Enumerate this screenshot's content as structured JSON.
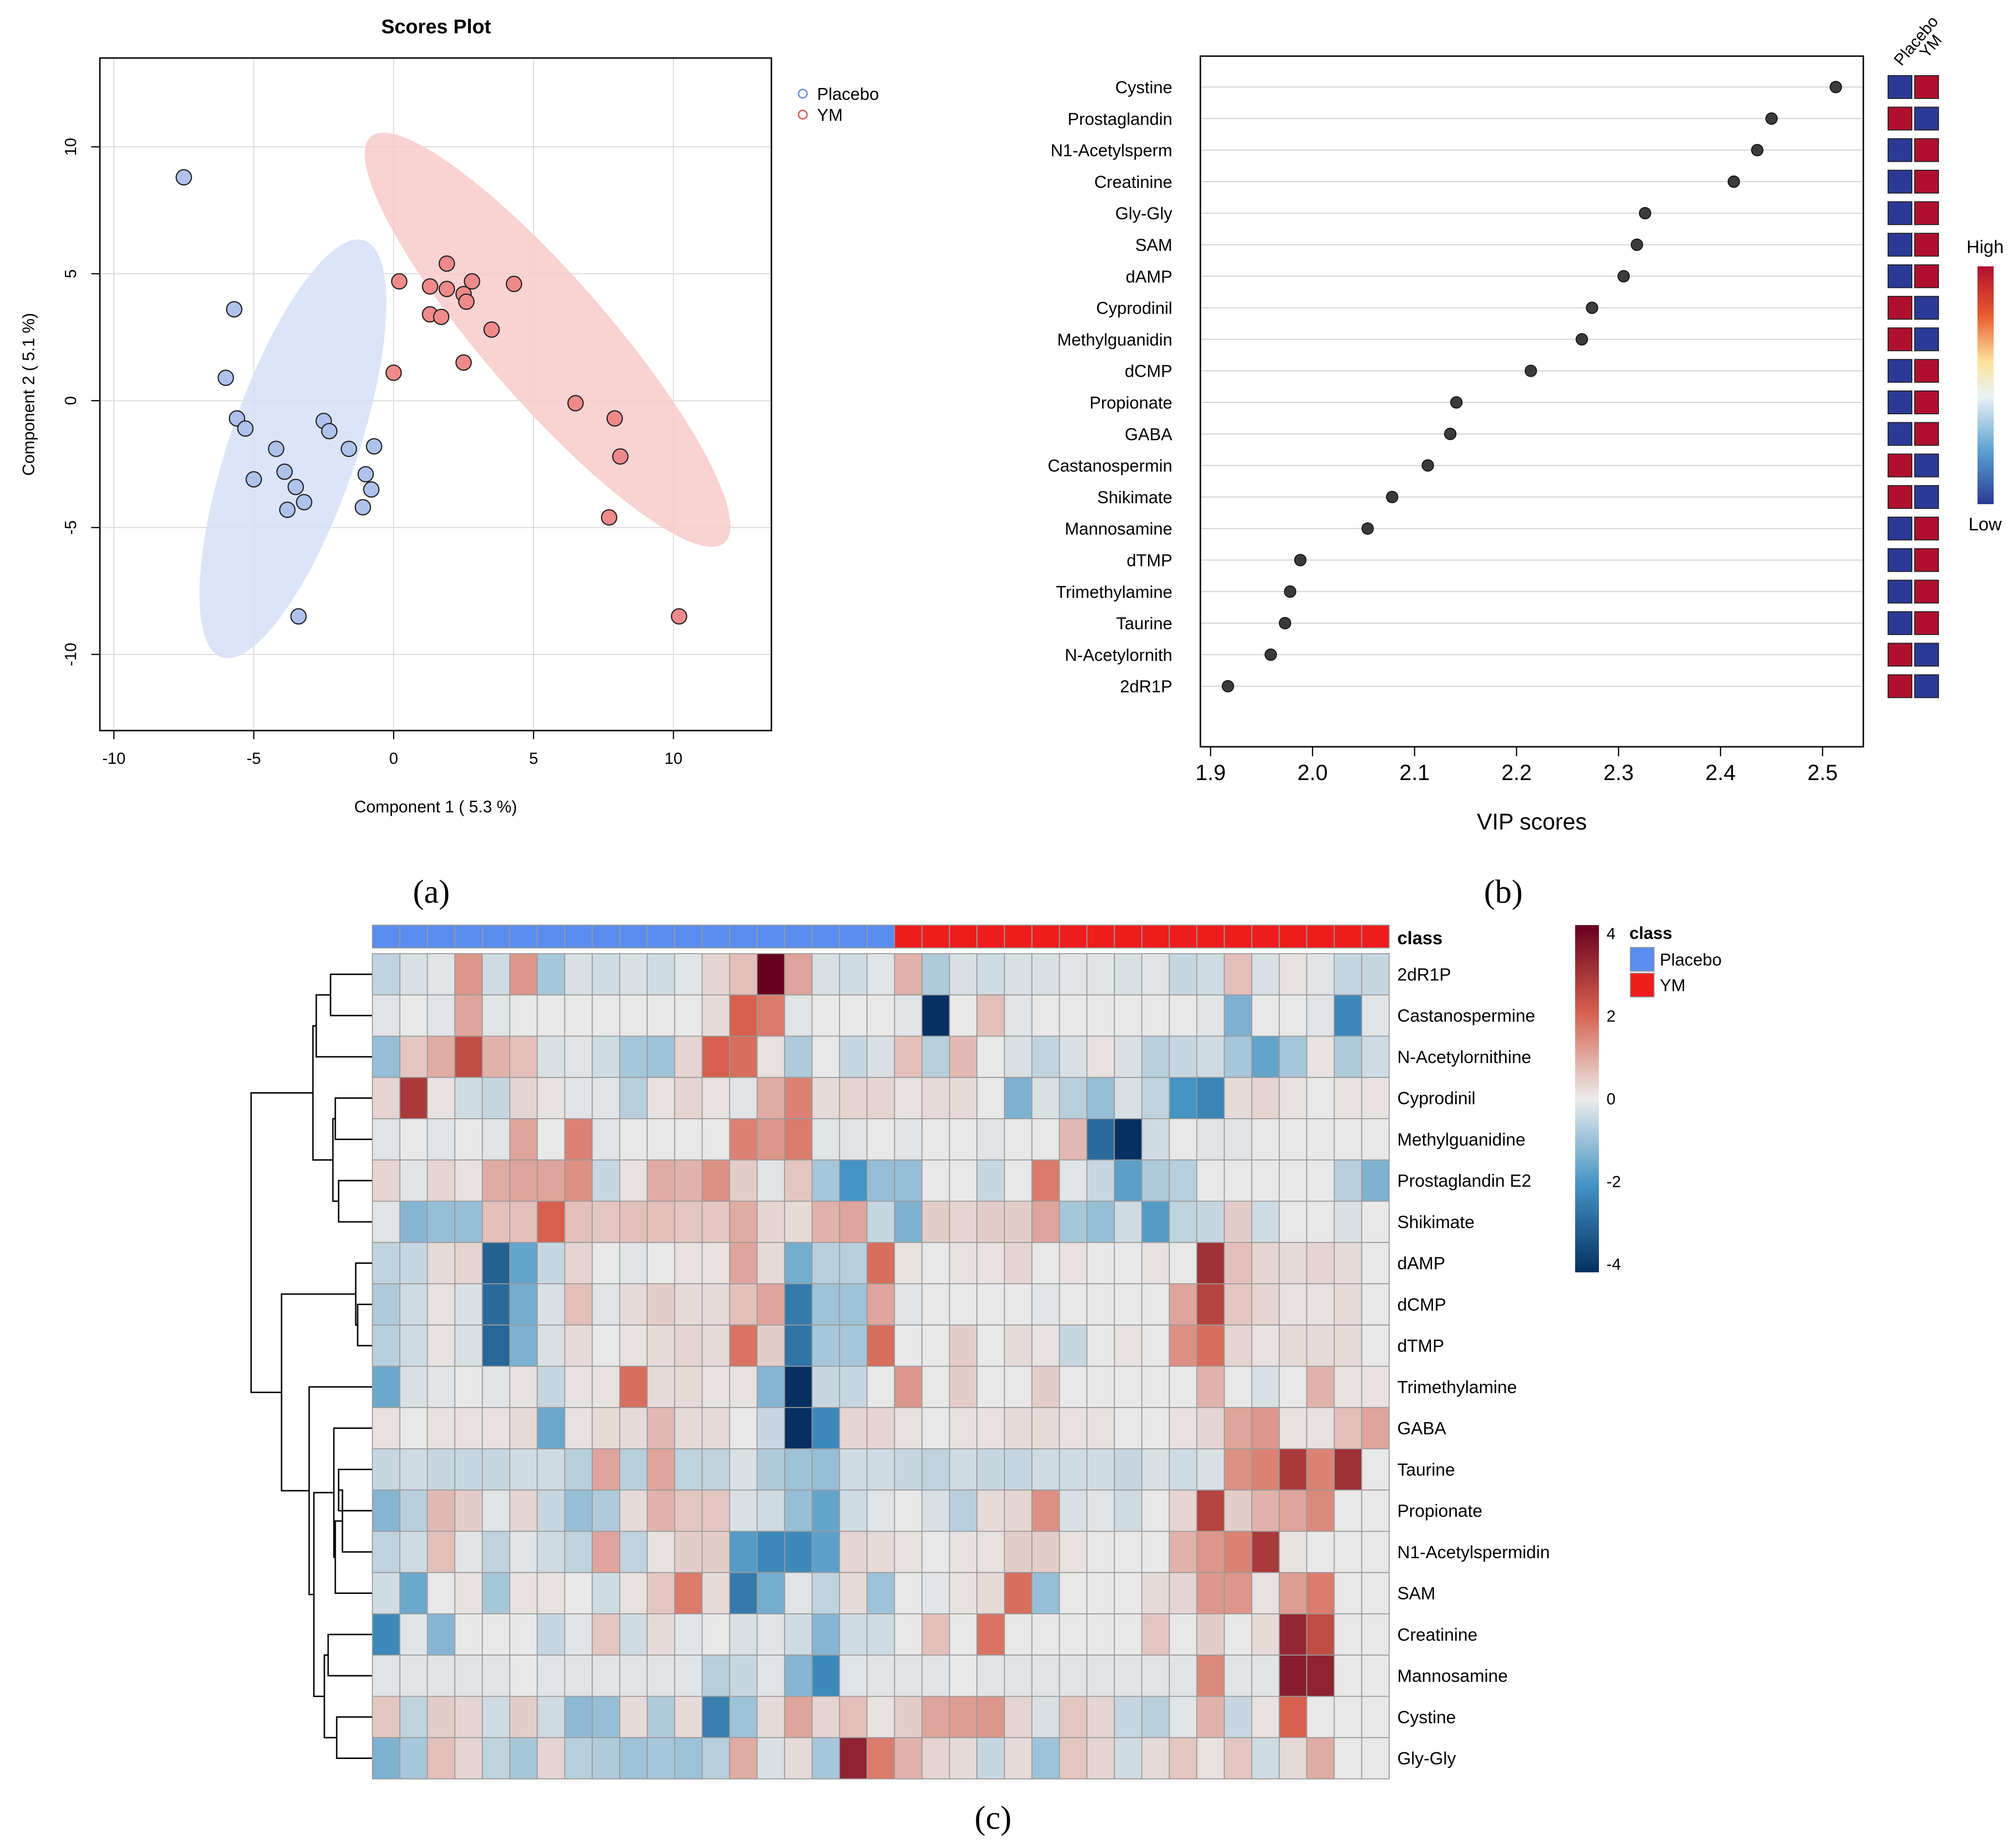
{
  "panel_labels": [
    "(a)",
    "(b)",
    "(c)"
  ],
  "chart_data": [
    {
      "type": "scatter",
      "title": "Scores Plot",
      "xlabel": "Component 1 ( 5.3 %)",
      "ylabel": "Component 2 ( 5.1 %)",
      "xlim": [
        -10.5,
        13.5
      ],
      "ylim": [
        -13,
        13.5
      ],
      "xticks": [
        -10,
        -5,
        0,
        5,
        10
      ],
      "yticks": [
        -10,
        -5,
        0,
        5,
        10
      ],
      "xtick_labels": [
        "-10",
        "-5",
        "0",
        "5",
        "10"
      ],
      "ytick_labels": [
        "-10",
        "-5",
        "0",
        "5",
        "10"
      ],
      "grid": true,
      "legend_position": "outside-right",
      "series": [
        {
          "name": "Placebo",
          "fill": "#aec2ec",
          "ellipse_fill": "#d6e0f7",
          "legend_color": "#6d8fe0",
          "ellipse": {
            "cx": -3.6,
            "cy": -1.9,
            "rx": 8.6,
            "ry": 2.3,
            "angle_deg": 73
          },
          "points": [
            [
              -7.5,
              8.8
            ],
            [
              -5.7,
              3.6
            ],
            [
              -6.0,
              0.9
            ],
            [
              -5.6,
              -0.7
            ],
            [
              -5.3,
              -1.1
            ],
            [
              -4.2,
              -1.9
            ],
            [
              -3.9,
              -2.8
            ],
            [
              -5.0,
              -3.1
            ],
            [
              -3.5,
              -3.4
            ],
            [
              -3.8,
              -4.3
            ],
            [
              -3.2,
              -4.0
            ],
            [
              -2.5,
              -0.8
            ],
            [
              -2.3,
              -1.2
            ],
            [
              -1.6,
              -1.9
            ],
            [
              -1.0,
              -2.9
            ],
            [
              -0.7,
              -1.8
            ],
            [
              -0.8,
              -3.5
            ],
            [
              -1.1,
              -4.2
            ],
            [
              -3.4,
              -8.5
            ]
          ]
        },
        {
          "name": "YM",
          "fill": "#f08a8a",
          "ellipse_fill": "#f8caca",
          "legend_color": "#e05a5a",
          "ellipse": {
            "cx": 5.5,
            "cy": 2.4,
            "rx": 10.2,
            "ry": 2.3,
            "angle_deg": -52
          },
          "points": [
            [
              0.2,
              4.7
            ],
            [
              1.9,
              5.4
            ],
            [
              2.8,
              4.7
            ],
            [
              4.3,
              4.6
            ],
            [
              1.3,
              4.5
            ],
            [
              1.9,
              4.4
            ],
            [
              2.5,
              4.2
            ],
            [
              2.6,
              3.9
            ],
            [
              1.3,
              3.4
            ],
            [
              1.7,
              3.3
            ],
            [
              3.5,
              2.8
            ],
            [
              2.5,
              1.5
            ],
            [
              0.0,
              1.1
            ],
            [
              6.5,
              -0.1
            ],
            [
              7.9,
              -0.7
            ],
            [
              8.1,
              -2.2
            ],
            [
              7.7,
              -4.6
            ],
            [
              10.2,
              -8.5
            ]
          ]
        }
      ]
    },
    {
      "type": "scatter",
      "title": "",
      "xlabel": "VIP scores",
      "ylabel": "",
      "xlim": [
        1.89,
        2.54
      ],
      "xticks": [
        1.9,
        2.0,
        2.1,
        2.2,
        2.3,
        2.4,
        2.5
      ],
      "xtick_labels": [
        "1.9",
        "2.0",
        "2.1",
        "2.2",
        "2.3",
        "2.4",
        "2.5"
      ],
      "grid": true,
      "columns": [
        "Placebo",
        "YM"
      ],
      "colorbar": {
        "high_label": "High",
        "low_label": "Low"
      },
      "high_color": "#b0102e",
      "low_color": "#2b3a96",
      "features": [
        {
          "name": "Cystine",
          "vip": 2.513,
          "high": "YM"
        },
        {
          "name": "Prostaglandin",
          "vip": 2.45,
          "high": "Placebo"
        },
        {
          "name": "N1-Acetylsperm",
          "vip": 2.436,
          "high": "YM"
        },
        {
          "name": "Creatinine",
          "vip": 2.413,
          "high": "YM"
        },
        {
          "name": "Gly-Gly",
          "vip": 2.326,
          "high": "YM"
        },
        {
          "name": "SAM",
          "vip": 2.318,
          "high": "YM"
        },
        {
          "name": "dAMP",
          "vip": 2.305,
          "high": "YM"
        },
        {
          "name": "Cyprodinil",
          "vip": 2.274,
          "high": "Placebo"
        },
        {
          "name": "Methylguanidin",
          "vip": 2.264,
          "high": "Placebo"
        },
        {
          "name": "dCMP",
          "vip": 2.214,
          "high": "YM"
        },
        {
          "name": "Propionate",
          "vip": 2.141,
          "high": "YM"
        },
        {
          "name": "GABA",
          "vip": 2.135,
          "high": "YM"
        },
        {
          "name": "Castanospermin",
          "vip": 2.113,
          "high": "Placebo"
        },
        {
          "name": "Shikimate",
          "vip": 2.078,
          "high": "Placebo"
        },
        {
          "name": "Mannosamine",
          "vip": 2.054,
          "high": "YM"
        },
        {
          "name": "dTMP",
          "vip": 1.988,
          "high": "YM"
        },
        {
          "name": "Trimethylamine",
          "vip": 1.978,
          "high": "YM"
        },
        {
          "name": "Taurine",
          "vip": 1.973,
          "high": "YM"
        },
        {
          "name": "N-Acetylornith",
          "vip": 1.959,
          "high": "Placebo"
        },
        {
          "name": "2dR1P",
          "vip": 1.917,
          "high": "Placebo"
        }
      ]
    },
    {
      "type": "heatmap",
      "class_label": "class",
      "classes": [
        {
          "name": "Placebo",
          "color": "#5a8cf0"
        },
        {
          "name": "YM",
          "color": "#ee1c1c"
        }
      ],
      "n_placebo": 19,
      "n_ym": 18,
      "rows": [
        "2dR1P",
        "Castanospermine",
        "N-Acetylornithine",
        "Cyprodinil",
        "Methylguanidine",
        "Prostaglandin E2",
        "Shikimate",
        "dAMP",
        "dCMP",
        "dTMP",
        "Trimethylamine",
        "GABA",
        "Taurine",
        "Propionate",
        "N1-Acetylspermidin",
        "SAM",
        "Creatinine",
        "Mannosamine",
        "Cystine",
        "Gly-Gly"
      ],
      "values": [
        [
          -0.5,
          -0.2,
          -0.1,
          1.2,
          -0.3,
          1.2,
          -0.8,
          -0.2,
          -0.3,
          -0.2,
          -0.3,
          -0.1,
          0.3,
          0.6,
          4.0,
          1.0,
          -0.2,
          -0.3,
          -0.1,
          0.8,
          -0.7,
          -0.2,
          -0.3,
          -0.2,
          -0.2,
          -0.1,
          -0.1,
          -0.2,
          -0.1,
          -0.4,
          -0.3,
          0.6,
          -0.2,
          0.1,
          -0.1,
          -0.4,
          -0.4
        ],
        [
          -0.1,
          0.0,
          -0.1,
          1.0,
          -0.1,
          0.0,
          0.0,
          0.0,
          0.0,
          0.0,
          0.0,
          0.0,
          0.2,
          2.0,
          1.6,
          -0.1,
          0.0,
          0.0,
          0.0,
          -0.1,
          -4.0,
          0.0,
          0.6,
          -0.1,
          0.0,
          0.0,
          0.0,
          0.0,
          0.0,
          0.0,
          -0.1,
          -1.3,
          0.0,
          0.0,
          -0.1,
          -2.2,
          -0.1
        ],
        [
          -1.0,
          0.5,
          0.9,
          2.4,
          0.8,
          0.6,
          -0.2,
          -0.1,
          -0.3,
          -0.8,
          -0.9,
          0.3,
          2.0,
          1.8,
          0.1,
          -0.7,
          0.0,
          -0.4,
          -0.2,
          0.6,
          -0.6,
          0.7,
          0.0,
          -0.2,
          -0.5,
          -0.2,
          0.1,
          -0.2,
          -0.6,
          -0.4,
          -0.3,
          -0.8,
          -1.6,
          -0.8,
          0.1,
          -0.7,
          -0.3
        ],
        [
          0.3,
          2.8,
          0.1,
          -0.3,
          -0.4,
          0.3,
          0.1,
          -0.1,
          -0.1,
          -0.6,
          0.1,
          0.3,
          0.1,
          -0.1,
          0.9,
          1.5,
          0.2,
          0.3,
          0.3,
          0.1,
          0.2,
          0.2,
          0.0,
          -1.3,
          -0.2,
          -0.6,
          -1.0,
          -0.2,
          -0.5,
          -2.0,
          -2.3,
          0.2,
          0.3,
          0.1,
          0.0,
          0.1,
          0.1
        ],
        [
          -0.1,
          0.0,
          -0.1,
          0.0,
          -0.1,
          1.0,
          0.0,
          1.5,
          -0.1,
          0.0,
          0.0,
          0.0,
          0.0,
          1.5,
          1.2,
          1.6,
          -0.1,
          -0.1,
          0.0,
          -0.1,
          0.0,
          0.0,
          -0.1,
          0.0,
          0.0,
          0.7,
          -2.8,
          -4.1,
          -0.3,
          0.0,
          -0.1,
          -0.1,
          0.0,
          0.0,
          0.0,
          0.0,
          0.0
        ],
        [
          0.3,
          -0.1,
          0.3,
          0.1,
          0.9,
          1.0,
          1.0,
          1.3,
          -0.4,
          0.1,
          0.9,
          0.8,
          1.3,
          0.4,
          -0.1,
          0.5,
          -0.8,
          -2.0,
          -1.0,
          -1.0,
          0.0,
          0.0,
          -0.4,
          0.0,
          1.6,
          -0.1,
          -0.4,
          -1.7,
          -0.7,
          -0.6,
          0.0,
          0.0,
          0.0,
          0.0,
          0.0,
          -0.6,
          -1.3
        ],
        [
          -0.1,
          -1.2,
          -1.0,
          -1.0,
          0.6,
          0.6,
          2.0,
          0.6,
          0.5,
          0.6,
          0.6,
          0.5,
          0.5,
          0.9,
          0.3,
          0.2,
          0.8,
          1.0,
          -0.4,
          -1.3,
          0.4,
          0.3,
          0.4,
          0.4,
          1.0,
          -0.8,
          -1.0,
          -0.3,
          -1.8,
          -0.5,
          -0.4,
          0.4,
          -0.3,
          0.0,
          0.0,
          -0.2,
          0.0
        ],
        [
          -0.5,
          -0.4,
          0.2,
          0.3,
          -3.0,
          -1.6,
          -0.4,
          0.3,
          0.0,
          -0.1,
          0.0,
          0.1,
          0.1,
          1.0,
          0.2,
          -1.4,
          -0.6,
          -0.6,
          1.8,
          0.1,
          0.0,
          0.1,
          0.1,
          0.3,
          0.0,
          0.1,
          0.0,
          0.0,
          0.1,
          0.0,
          3.0,
          0.6,
          0.3,
          0.2,
          0.3,
          0.2,
          0.0
        ],
        [
          -0.7,
          -0.3,
          0.1,
          -0.2,
          -2.8,
          -1.4,
          -0.2,
          0.6,
          -0.1,
          0.2,
          0.4,
          0.2,
          0.2,
          0.6,
          1.0,
          -2.5,
          -0.9,
          -0.9,
          1.0,
          -0.1,
          0.0,
          0.0,
          0.0,
          0.0,
          -0.1,
          0.0,
          0.0,
          0.0,
          0.0,
          1.0,
          2.6,
          0.5,
          0.3,
          0.1,
          0.1,
          0.2,
          0.0
        ],
        [
          -0.6,
          -0.3,
          0.1,
          -0.2,
          -2.9,
          -1.3,
          -0.2,
          0.2,
          0.0,
          0.1,
          0.2,
          0.3,
          0.2,
          1.7,
          0.4,
          -2.6,
          -0.8,
          -0.8,
          1.8,
          0.0,
          0.0,
          0.4,
          0.0,
          0.2,
          0.1,
          -0.4,
          0.0,
          0.1,
          0.0,
          1.3,
          1.8,
          0.3,
          0.1,
          0.2,
          0.2,
          0.2,
          0.0
        ],
        [
          -1.5,
          -0.2,
          -0.1,
          0.0,
          -0.1,
          0.1,
          -0.4,
          0.1,
          0.1,
          1.8,
          0.2,
          0.2,
          0.1,
          0.1,
          -1.2,
          -4.3,
          -0.4,
          -0.4,
          0.0,
          1.2,
          0.0,
          0.4,
          0.0,
          0.0,
          0.4,
          0.0,
          0.0,
          0.0,
          0.0,
          0.0,
          0.8,
          0.0,
          -0.2,
          0.0,
          0.8,
          0.1,
          0.1
        ],
        [
          0.1,
          0.0,
          0.1,
          0.1,
          0.1,
          0.2,
          -1.5,
          0.1,
          0.2,
          0.2,
          0.7,
          0.2,
          0.2,
          0.0,
          -0.4,
          -4.0,
          -2.2,
          0.3,
          0.3,
          0.1,
          0.0,
          0.1,
          0.1,
          0.2,
          0.2,
          0.1,
          0.1,
          0.0,
          0.0,
          0.1,
          0.3,
          1.0,
          1.2,
          0.1,
          0.1,
          0.6,
          1.0
        ],
        [
          -0.4,
          -0.3,
          -0.4,
          -0.4,
          -0.4,
          -0.3,
          -0.3,
          -0.6,
          1.0,
          -0.6,
          1.0,
          -0.5,
          -0.5,
          -0.2,
          -0.7,
          -0.9,
          -1.0,
          -0.3,
          -0.3,
          -0.4,
          -0.5,
          -0.3,
          -0.4,
          -0.4,
          -0.3,
          -0.3,
          -0.3,
          -0.4,
          -0.2,
          -0.3,
          -0.2,
          1.3,
          1.5,
          2.8,
          1.5,
          3.0,
          0.0
        ],
        [
          -1.2,
          -0.6,
          0.7,
          0.4,
          -0.1,
          0.3,
          -0.4,
          -1.0,
          -0.7,
          0.2,
          0.8,
          0.5,
          0.5,
          -0.2,
          -0.3,
          -1.0,
          -1.6,
          -0.3,
          -0.1,
          0.0,
          -0.2,
          -0.6,
          0.2,
          0.3,
          1.3,
          -0.2,
          -0.1,
          -0.3,
          0.0,
          0.3,
          2.6,
          0.4,
          0.8,
          1.0,
          1.4,
          0.0,
          0.0
        ],
        [
          -0.5,
          -0.3,
          0.6,
          -0.1,
          -0.5,
          -0.1,
          -0.3,
          -0.5,
          1.0,
          -0.5,
          0.1,
          0.4,
          0.4,
          -1.8,
          -2.2,
          -2.2,
          -1.7,
          0.3,
          0.2,
          0.1,
          0.0,
          0.1,
          0.1,
          0.4,
          0.4,
          0.1,
          0.0,
          0.0,
          0.0,
          0.8,
          1.2,
          1.5,
          2.8,
          0.1,
          0.0,
          0.0,
          0.0
        ],
        [
          -0.3,
          -1.5,
          0.0,
          0.1,
          -0.8,
          0.1,
          0.1,
          0.0,
          -0.3,
          0.1,
          0.5,
          1.6,
          0.2,
          -2.5,
          -1.4,
          -0.1,
          -0.5,
          0.2,
          -0.9,
          0.0,
          -0.1,
          0.1,
          0.2,
          1.8,
          -1.0,
          0.0,
          0.0,
          0.0,
          0.2,
          0.3,
          1.2,
          1.2,
          0.1,
          1.1,
          1.6,
          0.0,
          0.0
        ],
        [
          -2.2,
          -0.1,
          -1.2,
          0.0,
          0.0,
          0.0,
          -0.4,
          -0.1,
          0.5,
          -0.3,
          0.2,
          -0.1,
          0.0,
          -0.2,
          -0.1,
          -0.3,
          -1.2,
          -0.3,
          -0.3,
          0.0,
          0.6,
          0.0,
          1.7,
          0.0,
          0.0,
          0.0,
          0.0,
          0.0,
          0.5,
          0.0,
          0.4,
          0.0,
          0.2,
          3.2,
          2.4,
          0.0,
          0.0
        ],
        [
          -0.1,
          -0.1,
          -0.1,
          -0.1,
          -0.1,
          0.0,
          -0.1,
          -0.1,
          -0.1,
          -0.1,
          -0.1,
          -0.1,
          -0.6,
          -0.4,
          -0.1,
          -1.2,
          -2.2,
          -0.1,
          -0.1,
          -0.1,
          -0.1,
          0.0,
          -0.1,
          -0.1,
          -0.1,
          -0.1,
          -0.1,
          -0.1,
          -0.1,
          -0.1,
          1.4,
          -0.1,
          -0.1,
          3.4,
          3.3,
          0.0,
          0.0
        ],
        [
          0.5,
          -0.5,
          0.4,
          0.3,
          -0.3,
          0.4,
          -0.3,
          -1.1,
          -1.0,
          0.2,
          -0.7,
          0.2,
          -2.4,
          -0.9,
          0.2,
          1.0,
          0.3,
          0.6,
          0.1,
          0.4,
          1.0,
          1.1,
          1.2,
          0.3,
          -0.2,
          0.5,
          0.3,
          -0.4,
          -0.6,
          -0.1,
          0.8,
          -0.4,
          0.1,
          2.0,
          0.0,
          0.0,
          0.0
        ],
        [
          -1.3,
          -0.8,
          0.6,
          0.3,
          -0.5,
          -0.8,
          0.3,
          -0.6,
          -0.7,
          -0.9,
          -0.8,
          -0.9,
          -0.6,
          0.9,
          -0.2,
          0.2,
          -0.8,
          3.3,
          1.6,
          0.8,
          0.3,
          0.2,
          -0.4,
          0.2,
          -0.9,
          0.5,
          0.3,
          -0.3,
          0.2,
          0.5,
          0.1,
          0.5,
          -0.3,
          0.2,
          0.9,
          0.0,
          0.0
        ]
      ],
      "colorbar": {
        "ticks": [
          4,
          2,
          0,
          -2,
          -4
        ],
        "tick_labels": [
          "4",
          "2",
          "0",
          "-2",
          "-4"
        ],
        "range": [
          -4.2,
          4.2
        ]
      }
    }
  ]
}
